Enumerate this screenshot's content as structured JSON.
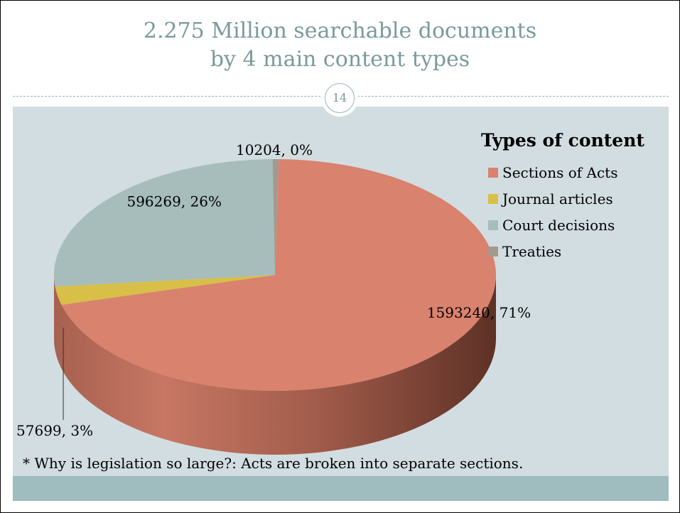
{
  "slide": {
    "title_line1": "2.275 Million searchable documents",
    "title_line2": "by 4 main content types",
    "slide_number": "14",
    "note": "* Why is legislation so large?:  Acts are broken into separate sections."
  },
  "chart_data": {
    "type": "pie",
    "legend_title": "Types of content",
    "legend_position": "right",
    "slices": [
      {
        "name": "Sections of Acts",
        "value": 1593240,
        "percent_label": "71%",
        "label": "1593240, 71%",
        "color": "#d9826d"
      },
      {
        "name": "Journal articles",
        "value": 57699,
        "percent_label": "3%",
        "label": "57699, 3%",
        "color": "#d8bf47"
      },
      {
        "name": "Court decisions",
        "value": 596269,
        "percent_label": "26%",
        "label": "596269, 26%",
        "color": "#a6bdbc"
      },
      {
        "name": "Treaties",
        "value": 10204,
        "percent_label": "0%",
        "label": "10204, 0%",
        "color": "#a39a8d"
      }
    ]
  },
  "colors": {
    "title": "#7a9a9b",
    "panel": "#d2dde1",
    "footer_band": "#9fbcbe"
  }
}
